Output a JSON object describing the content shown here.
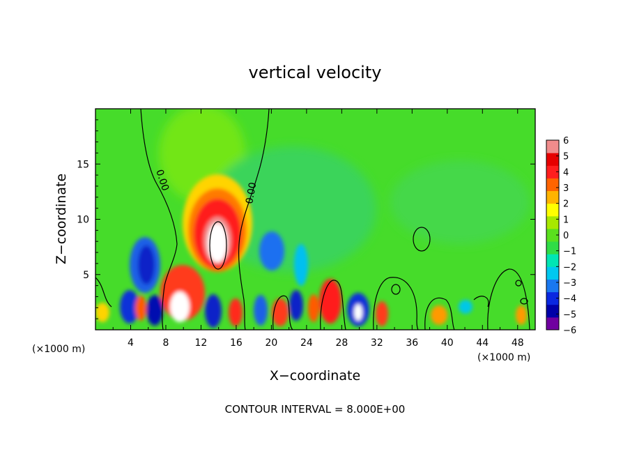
{
  "chart_data": {
    "type": "heatmap",
    "title": "vertical velocity",
    "xlabel": "X−coordinate",
    "ylabel": "Z−coordinate",
    "x_unit_left": "(×1000 m)",
    "x_unit_right": "(×1000 m)",
    "footer": "CONTOUR INTERVAL = 8.000E+00",
    "xlim": [
      0,
      50
    ],
    "ylim": [
      0,
      20
    ],
    "x_ticks": [
      4,
      8,
      12,
      16,
      20,
      24,
      28,
      32,
      36,
      40,
      44,
      48
    ],
    "y_ticks": [
      5,
      10,
      15
    ],
    "colorbar": {
      "min": -6,
      "max": 6,
      "ticks": [
        6,
        5,
        4,
        3,
        2,
        1,
        0,
        -1,
        -2,
        -3,
        -4,
        -5,
        -6
      ],
      "tick_labels": [
        "6",
        "5",
        "4",
        "3",
        "2",
        "1",
        "0",
        "−1",
        "−2",
        "−3",
        "−4",
        "−5",
        "−6"
      ],
      "colors": [
        "#7000a0",
        "#0000a8",
        "#0a28e0",
        "#1a78f0",
        "#00c8f0",
        "#00e6b4",
        "#30dc46",
        "#5ae01e",
        "#a8e800",
        "#ffff00",
        "#ffb400",
        "#ff6400",
        "#ff1e1e",
        "#e60000",
        "#f08c8c"
      ]
    },
    "contour_labels": [
      "0.00",
      "0.00"
    ],
    "features": [
      {
        "type": "updraft",
        "x": 13.6,
        "z": 8.0,
        "value": 6
      },
      {
        "type": "downdraft",
        "x": 6.0,
        "z": 7.0,
        "value": -4.5
      },
      {
        "type": "downdraft",
        "x": 20.0,
        "z": 7.5,
        "value": -3.5
      }
    ]
  }
}
